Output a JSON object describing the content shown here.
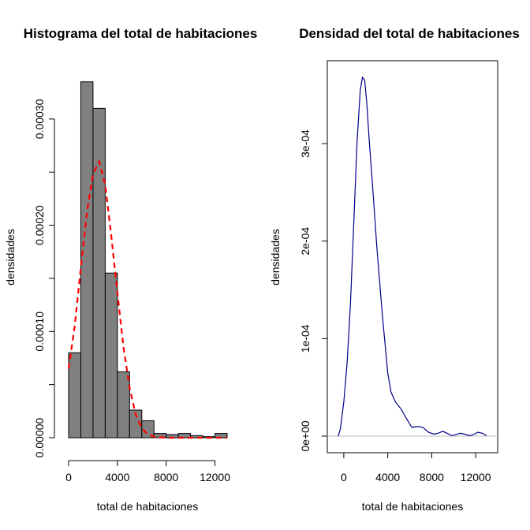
{
  "chart_data": [
    {
      "type": "bar",
      "subtype": "histogram-with-density-overlay",
      "title": "Histograma del total de habitaciones",
      "xlabel": "total de habitaciones",
      "ylabel": "densidades",
      "xlim": [
        0,
        13000
      ],
      "ylim": [
        0,
        0.00034
      ],
      "xticks": [
        0,
        4000,
        8000,
        12000
      ],
      "xtick_labels": [
        "0",
        "4000",
        "8000",
        "12000"
      ],
      "yticks": [
        0,
        0.0001,
        0.0002,
        0.0003
      ],
      "ytick_labels": [
        "0.00000",
        "0.00010",
        "0.00020",
        "0.00030"
      ],
      "bins": [
        {
          "from": 0,
          "to": 1000,
          "density": 8e-05
        },
        {
          "from": 1000,
          "to": 2000,
          "density": 0.000335
        },
        {
          "from": 2000,
          "to": 3000,
          "density": 0.00031
        },
        {
          "from": 3000,
          "to": 4000,
          "density": 0.000155
        },
        {
          "from": 4000,
          "to": 5000,
          "density": 6.2e-05
        },
        {
          "from": 5000,
          "to": 6000,
          "density": 2.6e-05
        },
        {
          "from": 6000,
          "to": 7000,
          "density": 1.6e-05
        },
        {
          "from": 7000,
          "to": 8000,
          "density": 4e-06
        },
        {
          "from": 8000,
          "to": 9000,
          "density": 3e-06
        },
        {
          "from": 9000,
          "to": 10000,
          "density": 4e-06
        },
        {
          "from": 10000,
          "to": 11000,
          "density": 2e-06
        },
        {
          "from": 11000,
          "to": 12000,
          "density": 1e-06
        },
        {
          "from": 12000,
          "to": 13000,
          "density": 4e-06
        }
      ],
      "overlay": {
        "style": "dashed",
        "color": "#ff0000",
        "x": [
          0,
          500,
          1000,
          1500,
          2000,
          2500,
          3000,
          3500,
          4000,
          4500,
          5000,
          5500,
          6000,
          6500,
          7000,
          8000,
          9000,
          10000,
          11000,
          12000,
          13000
        ],
        "y": [
          6.5e-05,
          0.000105,
          0.00016,
          0.000212,
          0.000248,
          0.00026,
          0.000238,
          0.00019,
          0.000137,
          8.5e-05,
          4.7e-05,
          2.2e-05,
          9e-06,
          3e-06,
          1e-06,
          0,
          0,
          0,
          0,
          0,
          0
        ]
      },
      "bar_color": "#808080"
    },
    {
      "type": "line",
      "title": "Densidad del total de habitaciones",
      "xlabel": "total de habitaciones",
      "ylabel": "densidades",
      "xlim": [
        -1500,
        14000
      ],
      "ylim": [
        -1.7e-05,
        0.000385
      ],
      "xticks": [
        0,
        4000,
        8000,
        12000
      ],
      "xtick_labels": [
        "0",
        "4000",
        "8000",
        "12000"
      ],
      "yticks": [
        0,
        0.0001,
        0.0002,
        0.0003
      ],
      "ytick_labels": [
        "0e+00",
        "1e-04",
        "2e-04",
        "3e-04"
      ],
      "baseline": {
        "y": 0,
        "color": "#bebebe"
      },
      "series": [
        {
          "color": "#00008b",
          "x": [
            -500,
            -300,
            0,
            300,
            600,
            900,
            1200,
            1500,
            1700,
            1900,
            2100,
            2300,
            2600,
            3000,
            3500,
            4000,
            4300,
            4700,
            5200,
            5700,
            6200,
            6700,
            7200,
            7700,
            8200,
            8600,
            9000,
            9400,
            9800,
            10200,
            10600,
            11000,
            11400,
            11800,
            12200,
            12600,
            13000
          ],
          "y": [
            0.0,
            8e-06,
            3.5e-05,
            7.5e-05,
            0.000135,
            0.000215,
            0.0003,
            0.000355,
            0.000368,
            0.000365,
            0.00034,
            0.000305,
            0.00026,
            0.000195,
            0.000125,
            6.5e-05,
            4.5e-05,
            3.5e-05,
            2.8e-05,
            1.8e-05,
            9e-06,
            1e-05,
            9e-06,
            4e-06,
            2e-06,
            3e-06,
            5e-06,
            3e-06,
            5e-07,
            1.5e-06,
            3e-06,
            2e-06,
            5e-07,
            1.5e-06,
            4e-06,
            3e-06,
            5e-07
          ]
        }
      ]
    }
  ]
}
